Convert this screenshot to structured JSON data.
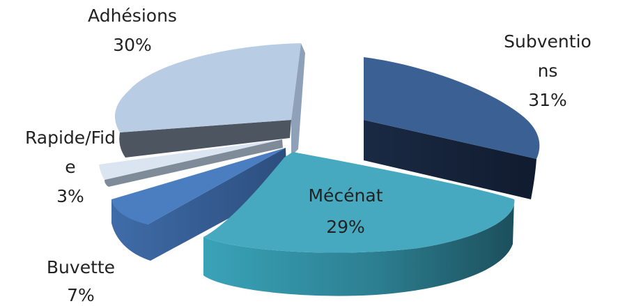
{
  "chart_data": {
    "type": "pie",
    "style": "3d-exploded",
    "slices": [
      {
        "label_lines": [
          "Subventio",
          "ns"
        ],
        "percent_label": "31%",
        "value": 31,
        "color": "#3b6094"
      },
      {
        "label_lines": [
          "Mécénat"
        ],
        "percent_label": "29%",
        "value": 29,
        "color": "#47a9bf"
      },
      {
        "label_lines": [
          "Buvette"
        ],
        "percent_label": "7%",
        "value": 7,
        "color": "#4a7ec0"
      },
      {
        "label_lines": [
          "Rapide/Fid",
          "e"
        ],
        "percent_label": "3%",
        "value": 3,
        "color": "#dbe5f1"
      },
      {
        "label_lines": [
          "Adhésions"
        ],
        "percent_label": "30%",
        "value": 30,
        "color": "#b8cce4"
      }
    ],
    "legend": "none"
  }
}
